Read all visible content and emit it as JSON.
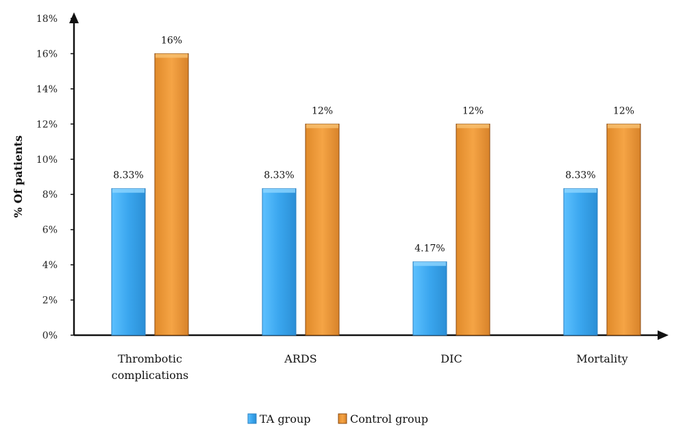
{
  "chart_data": {
    "type": "bar",
    "title": "",
    "xlabel": "",
    "ylabel": "% Of patients",
    "ylim": [
      0,
      18
    ],
    "yticks": [
      0,
      2,
      4,
      6,
      8,
      10,
      12,
      14,
      16,
      18
    ],
    "ytick_labels": [
      "0%",
      "2%",
      "4%",
      "6%",
      "8%",
      "10%",
      "12%",
      "14%",
      "16%",
      "18%"
    ],
    "grid": false,
    "legend_position": "bottom",
    "categories": [
      [
        "Thrombotic",
        "complications"
      ],
      [
        "ARDS"
      ],
      [
        "DIC"
      ],
      [
        "Mortality"
      ]
    ],
    "series": [
      {
        "name": "TA group",
        "color": "#42aaf0",
        "edge": "#2a7fc0",
        "values": [
          8.33,
          8.33,
          4.17,
          8.33
        ],
        "labels": [
          "8.33%",
          "8.33%",
          "4.17%",
          "8.33%"
        ]
      },
      {
        "name": "Control group",
        "color": "#f0a040",
        "edge": "#8a4a10",
        "values": [
          16,
          12,
          12,
          12
        ],
        "labels": [
          "16%",
          "12%",
          "12%",
          "12%"
        ]
      }
    ]
  }
}
